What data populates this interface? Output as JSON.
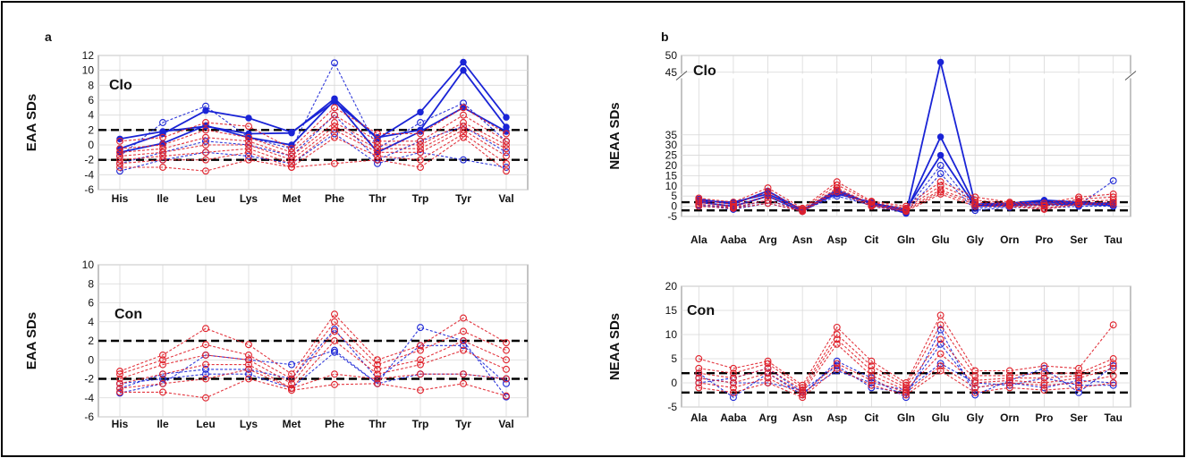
{
  "figure": {
    "panel_letters": [
      "a",
      "b"
    ],
    "colors": {
      "clozapine_series": "#1a24d6",
      "other_series": "#e0202a",
      "reference_lines": "#000000"
    }
  },
  "chart_data": [
    {
      "id": "a-clo",
      "type": "line",
      "panel": "a",
      "group_label": "Clo",
      "ylabel": "EAA SDs",
      "categories": [
        "His",
        "Ile",
        "Leu",
        "Lys",
        "Met",
        "Phe",
        "Thr",
        "Trp",
        "Tyr",
        "Val"
      ],
      "ylim": [
        -6,
        12
      ],
      "yticks": [
        -6,
        -4,
        -2,
        0,
        2,
        4,
        6,
        8,
        10,
        12
      ],
      "reference_lines": [
        2,
        -2
      ],
      "grid": true,
      "series": [
        {
          "color": "#1a24d6",
          "style": "solid",
          "values": [
            0.8,
            1.8,
            2.5,
            1.5,
            1.6,
            6.2,
            0.8,
            4.4,
            11.1,
            3.7
          ]
        },
        {
          "color": "#1a24d6",
          "style": "solid",
          "values": [
            -0.5,
            1.5,
            4.6,
            3.6,
            1.7,
            5.8,
            1.0,
            2.0,
            10.0,
            2.4
          ]
        },
        {
          "color": "#1a24d6",
          "style": "solid",
          "values": [
            -1.0,
            0.2,
            2.6,
            1.0,
            0.0,
            6.0,
            -1.0,
            1.8,
            5.0,
            1.8
          ]
        },
        {
          "color": "#1a24d6",
          "style": "dashed",
          "values": [
            -1.5,
            3.0,
            5.2,
            1.0,
            -0.5,
            11.0,
            -0.5,
            3.0,
            5.6,
            0.5
          ]
        },
        {
          "color": "#1a24d6",
          "style": "dashed",
          "values": [
            -2.5,
            -1.0,
            0.5,
            0.0,
            -1.5,
            4.0,
            -2.0,
            0.5,
            2.5,
            -1.0
          ]
        },
        {
          "color": "#1a24d6",
          "style": "dashed",
          "values": [
            -3.5,
            -2.0,
            -1.0,
            -1.5,
            -2.5,
            1.5,
            -2.5,
            -1.0,
            -2.0,
            -3.0
          ]
        },
        {
          "color": "#e0202a",
          "style": "dashed",
          "values": [
            0.5,
            1.0,
            3.0,
            2.5,
            -0.5,
            5.0,
            1.5,
            1.5,
            5.0,
            1.5
          ]
        },
        {
          "color": "#e0202a",
          "style": "dashed",
          "values": [
            -0.5,
            0.0,
            2.0,
            1.0,
            -1.0,
            4.0,
            0.5,
            0.5,
            4.0,
            0.5
          ]
        },
        {
          "color": "#e0202a",
          "style": "dashed",
          "values": [
            -1.0,
            -0.5,
            1.0,
            0.5,
            -1.5,
            3.0,
            0.0,
            0.0,
            3.0,
            0.0
          ]
        },
        {
          "color": "#e0202a",
          "style": "dashed",
          "values": [
            -1.5,
            -1.0,
            0.0,
            0.0,
            -2.0,
            2.5,
            -0.5,
            -0.5,
            2.5,
            -0.5
          ]
        },
        {
          "color": "#e0202a",
          "style": "dashed",
          "values": [
            -2.0,
            -1.5,
            -1.0,
            -0.5,
            -2.5,
            2.0,
            -1.0,
            -1.0,
            2.0,
            -1.5
          ]
        },
        {
          "color": "#e0202a",
          "style": "dashed",
          "values": [
            -2.5,
            -2.0,
            -2.0,
            -1.0,
            -3.0,
            1.0,
            -1.5,
            -2.0,
            1.5,
            -2.5
          ]
        },
        {
          "color": "#e0202a",
          "style": "dashed",
          "values": [
            -3.0,
            -3.0,
            -3.5,
            -2.0,
            -3.0,
            -2.5,
            -2.0,
            -3.0,
            1.0,
            -3.5
          ]
        }
      ]
    },
    {
      "id": "a-con",
      "type": "line",
      "panel": "a",
      "group_label": "Con",
      "ylabel": "EAA SDs",
      "categories": [
        "His",
        "Ile",
        "Leu",
        "Lys",
        "Met",
        "Phe",
        "Thr",
        "Trp",
        "Tyr",
        "Val"
      ],
      "ylim": [
        -6,
        10
      ],
      "yticks": [
        -6,
        -4,
        -2,
        0,
        2,
        4,
        6,
        8,
        10
      ],
      "reference_lines": [
        2,
        -2
      ],
      "grid": true,
      "series": [
        {
          "color": "#1a24d6",
          "style": "dashed",
          "values": [
            -3.5,
            -2.5,
            0.5,
            0.0,
            -0.5,
            1.0,
            -2.5,
            3.4,
            2.0,
            -3.9
          ]
        },
        {
          "color": "#1a24d6",
          "style": "dashed",
          "values": [
            -3.0,
            -1.5,
            -1.0,
            -1.0,
            -2.0,
            3.2,
            -2.0,
            1.5,
            1.5,
            -2.5
          ]
        },
        {
          "color": "#1a24d6",
          "style": "dashed",
          "values": [
            -2.5,
            -2.0,
            -1.5,
            -1.5,
            -3.0,
            0.8,
            -2.5,
            -1.5,
            -1.5,
            -2.0
          ]
        },
        {
          "color": "#e0202a",
          "style": "dashed",
          "values": [
            -1.2,
            0.5,
            3.3,
            1.6,
            -1.5,
            4.8,
            0.0,
            1.5,
            4.4,
            1.8
          ]
        },
        {
          "color": "#e0202a",
          "style": "dashed",
          "values": [
            -1.5,
            0.0,
            1.6,
            0.5,
            -2.0,
            4.0,
            -0.5,
            1.0,
            3.0,
            1.0
          ]
        },
        {
          "color": "#e0202a",
          "style": "dashed",
          "values": [
            -2.0,
            -0.5,
            0.5,
            0.0,
            -2.5,
            3.0,
            -1.0,
            0.0,
            2.0,
            0.0
          ]
        },
        {
          "color": "#e0202a",
          "style": "dashed",
          "values": [
            -2.5,
            -1.5,
            -0.5,
            -0.5,
            -3.0,
            2.0,
            -1.5,
            -0.5,
            1.0,
            -1.0
          ]
        },
        {
          "color": "#e0202a",
          "style": "dashed",
          "values": [
            -3.0,
            -2.5,
            -2.0,
            -1.0,
            -3.0,
            -1.5,
            -2.0,
            -1.5,
            -1.5,
            -2.0
          ]
        },
        {
          "color": "#e0202a",
          "style": "dashed",
          "values": [
            -3.4,
            -3.4,
            -4.0,
            -2.0,
            -3.2,
            -2.6,
            -2.5,
            -3.2,
            -2.5,
            -3.8
          ]
        }
      ]
    },
    {
      "id": "b-clo",
      "type": "line",
      "panel": "b",
      "group_label": "Clo",
      "ylabel": "NEAA SDs",
      "categories": [
        "Ala",
        "Aaba",
        "Arg",
        "Asn",
        "Asp",
        "Cit",
        "Gln",
        "Glu",
        "Gly",
        "Orn",
        "Pro",
        "Ser",
        "Tau"
      ],
      "ylim": [
        -5,
        50
      ],
      "yticks": [
        -5,
        0,
        5,
        10,
        15,
        20,
        25,
        30,
        35,
        45,
        50
      ],
      "axis_break": [
        36,
        44
      ],
      "reference_lines": [
        2,
        -2
      ],
      "grid": true,
      "series": [
        {
          "color": "#1a24d6",
          "style": "solid",
          "values": [
            2.5,
            2.0,
            6.0,
            -1.5,
            6.0,
            2.0,
            -3.5,
            48.0,
            1.0,
            1.5,
            3.0,
            2.0,
            1.0
          ]
        },
        {
          "color": "#1a24d6",
          "style": "solid",
          "values": [
            3.5,
            1.0,
            7.5,
            -2.0,
            8.0,
            1.0,
            -2.5,
            34.0,
            0.5,
            1.0,
            2.0,
            1.5,
            1.5
          ]
        },
        {
          "color": "#1a24d6",
          "style": "solid",
          "values": [
            2.0,
            0.0,
            5.0,
            -2.5,
            7.0,
            1.5,
            -1.5,
            25.0,
            0.0,
            0.5,
            1.0,
            1.0,
            0.5
          ]
        },
        {
          "color": "#1a24d6",
          "style": "dashed",
          "values": [
            1.0,
            -1.0,
            3.0,
            -2.0,
            5.0,
            0.5,
            -2.0,
            20.0,
            -1.0,
            0.0,
            0.5,
            0.5,
            12.5
          ]
        },
        {
          "color": "#1a24d6",
          "style": "dashed",
          "values": [
            0.5,
            -1.5,
            1.5,
            -2.5,
            6.5,
            0.0,
            -3.0,
            16.0,
            -2.0,
            -0.5,
            -1.0,
            0.0,
            0.0
          ]
        },
        {
          "color": "#e0202a",
          "style": "dashed",
          "values": [
            4.0,
            2.0,
            9.0,
            -1.0,
            12.0,
            2.5,
            0.0,
            12.0,
            4.5,
            2.0,
            1.5,
            4.5,
            6.0
          ]
        },
        {
          "color": "#e0202a",
          "style": "dashed",
          "values": [
            3.0,
            1.0,
            7.0,
            -1.5,
            10.5,
            2.0,
            -1.0,
            10.0,
            3.0,
            1.5,
            0.5,
            3.5,
            4.5
          ]
        },
        {
          "color": "#e0202a",
          "style": "dashed",
          "values": [
            2.0,
            0.0,
            5.0,
            -2.0,
            9.0,
            1.0,
            -1.5,
            8.0,
            2.0,
            1.0,
            0.0,
            2.5,
            3.0
          ]
        },
        {
          "color": "#e0202a",
          "style": "dashed",
          "values": [
            1.0,
            -0.5,
            3.0,
            -2.5,
            8.0,
            0.5,
            -2.0,
            7.0,
            1.0,
            0.5,
            -1.0,
            1.5,
            2.0
          ]
        },
        {
          "color": "#e0202a",
          "style": "dashed",
          "values": [
            0.0,
            -1.0,
            1.5,
            -2.5,
            7.0,
            0.0,
            -2.5,
            6.0,
            0.0,
            0.0,
            -1.5,
            1.0,
            1.0
          ]
        }
      ]
    },
    {
      "id": "b-con",
      "type": "line",
      "panel": "b",
      "group_label": "Con",
      "ylabel": "NEAA SDs",
      "categories": [
        "Ala",
        "Aaba",
        "Arg",
        "Asn",
        "Asp",
        "Cit",
        "Gln",
        "Glu",
        "Gly",
        "Orn",
        "Pro",
        "Ser",
        "Tau"
      ],
      "ylim": [
        -5,
        20
      ],
      "yticks": [
        -5,
        0,
        5,
        10,
        15,
        20
      ],
      "reference_lines": [
        2,
        -2
      ],
      "grid": true,
      "series": [
        {
          "color": "#1a24d6",
          "style": "dashed",
          "values": [
            2.0,
            -3.0,
            2.0,
            -2.5,
            4.5,
            1.0,
            -3.0,
            11.0,
            -2.5,
            0.5,
            3.0,
            -2.0,
            3.5
          ]
        },
        {
          "color": "#1a24d6",
          "style": "dashed",
          "values": [
            1.0,
            0.0,
            0.0,
            -1.5,
            3.5,
            -1.0,
            -2.0,
            8.0,
            -1.0,
            0.0,
            -1.0,
            0.5,
            0.0
          ]
        },
        {
          "color": "#1a24d6",
          "style": "dashed",
          "values": [
            0.0,
            1.0,
            3.0,
            -2.0,
            2.5,
            0.0,
            -1.5,
            4.0,
            0.0,
            -0.5,
            1.0,
            -0.5,
            -0.5
          ]
        },
        {
          "color": "#e0202a",
          "style": "dashed",
          "values": [
            5.0,
            3.0,
            4.5,
            -0.5,
            11.5,
            4.5,
            0.0,
            14.0,
            2.5,
            2.5,
            3.5,
            3.0,
            12.0
          ]
        },
        {
          "color": "#e0202a",
          "style": "dashed",
          "values": [
            3.0,
            2.0,
            4.0,
            -1.0,
            10.0,
            3.5,
            -0.5,
            12.0,
            1.5,
            1.5,
            2.0,
            2.0,
            5.0
          ]
        },
        {
          "color": "#e0202a",
          "style": "dashed",
          "values": [
            2.0,
            1.0,
            3.0,
            -1.5,
            9.0,
            2.5,
            -1.0,
            9.0,
            0.5,
            1.0,
            1.0,
            1.5,
            4.0
          ]
        },
        {
          "color": "#e0202a",
          "style": "dashed",
          "values": [
            1.0,
            0.0,
            2.0,
            -2.0,
            8.0,
            1.5,
            -1.5,
            6.0,
            0.0,
            0.5,
            0.0,
            1.0,
            3.0
          ]
        },
        {
          "color": "#e0202a",
          "style": "dashed",
          "values": [
            0.0,
            -1.0,
            1.0,
            -2.5,
            4.0,
            0.5,
            -2.0,
            3.5,
            -1.0,
            0.0,
            -0.5,
            0.0,
            1.5
          ]
        },
        {
          "color": "#e0202a",
          "style": "dashed",
          "values": [
            -1.0,
            -2.0,
            0.0,
            -3.0,
            3.0,
            -0.5,
            -2.5,
            2.5,
            -2.0,
            -1.0,
            -1.5,
            -1.0,
            0.0
          ]
        }
      ]
    }
  ]
}
